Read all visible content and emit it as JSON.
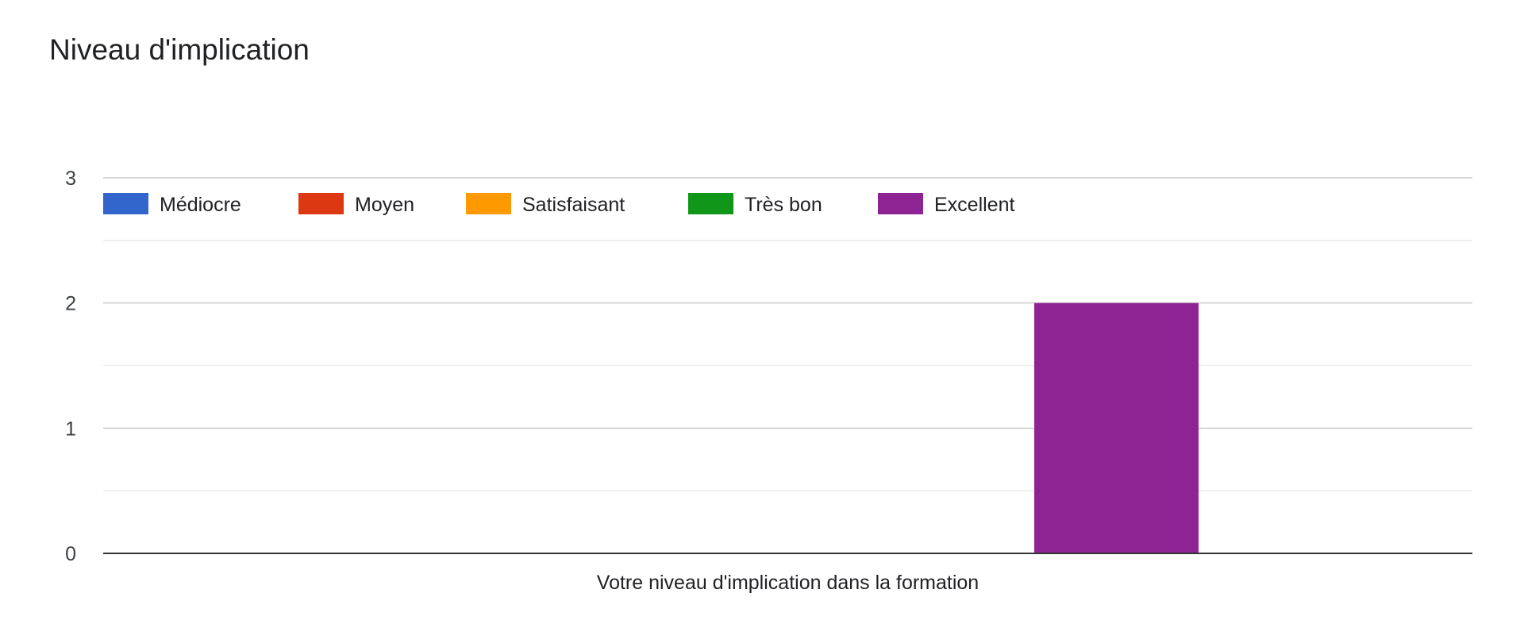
{
  "chart_data": {
    "type": "bar",
    "title": "Niveau d'implication",
    "categories": [
      "Votre niveau d'implication dans la formation"
    ],
    "series": [
      {
        "name": "Médiocre",
        "values": [
          0
        ],
        "color": "#3366cc"
      },
      {
        "name": "Moyen",
        "values": [
          0
        ],
        "color": "#dc3912"
      },
      {
        "name": "Satisfaisant",
        "values": [
          0
        ],
        "color": "#ff9900"
      },
      {
        "name": "Très bon",
        "values": [
          0
        ],
        "color": "#109618"
      },
      {
        "name": "Excellent",
        "values": [
          2
        ],
        "color": "#8e2493"
      }
    ],
    "xlabel": "",
    "ylabel": "",
    "ylim": [
      0,
      3
    ],
    "yticks": [
      "0",
      "1",
      "2",
      "3"
    ],
    "grid": true,
    "legend_position": "top-left"
  }
}
